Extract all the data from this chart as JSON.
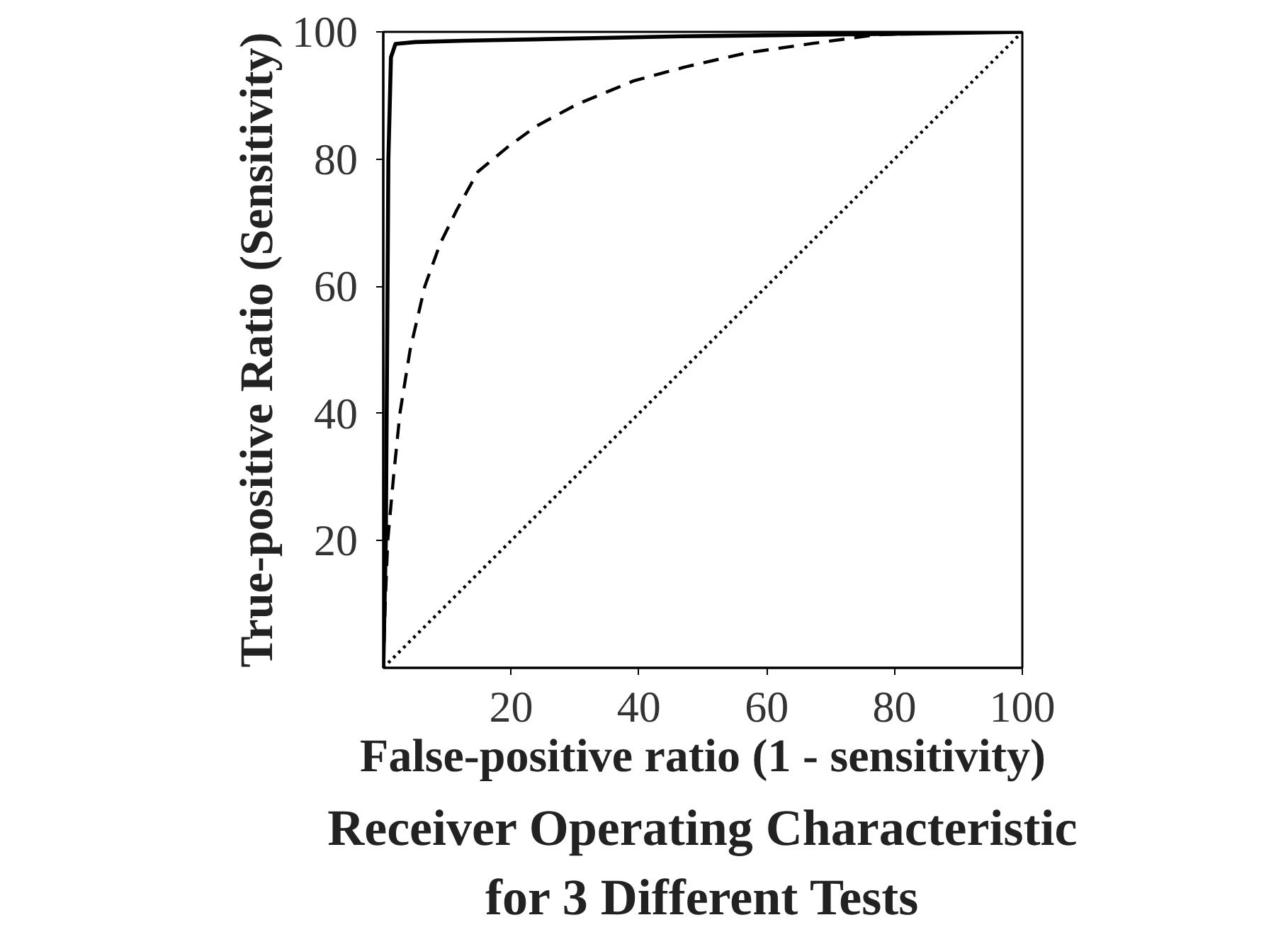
{
  "chart_data": {
    "type": "line",
    "title": "Receiver Operating Characteristic\nfor 3 Different Tests",
    "xlabel": "False-positive ratio (1 - sensitivity)",
    "ylabel": "True-positive Ratio (Sensitivity)",
    "xlim": [
      0,
      100
    ],
    "ylim": [
      0,
      100
    ],
    "xticks": [
      20,
      40,
      60,
      80,
      100
    ],
    "yticks": [
      20,
      40,
      60,
      80,
      100
    ],
    "series": [
      {
        "color": "#000000",
        "line_style": "solid",
        "x": [
          0,
          0.4,
          0.6,
          0.8,
          1.2,
          1.9,
          5,
          12.6,
          46.7,
          80,
          100
        ],
        "values": [
          0,
          20,
          50,
          80,
          96,
          98.1,
          98.4,
          98.6,
          99.3,
          99.7,
          100
        ]
      },
      {
        "color": "#000000",
        "line_style": "dashed",
        "x": [
          0,
          0.3,
          0.7,
          1.6,
          2.6,
          4.2,
          6.5,
          8.9,
          11.5,
          14.8,
          19.6,
          24,
          30.3,
          39.2,
          47.3,
          56.9,
          67.3,
          76.9,
          87,
          100
        ],
        "values": [
          0,
          10,
          20,
          30,
          40,
          50,
          60,
          66.7,
          72,
          78,
          82,
          85.2,
          88.6,
          92.3,
          94.5,
          96.7,
          98.2,
          99.5,
          100,
          100
        ]
      },
      {
        "color": "#000000",
        "line_style": "dotted",
        "x": [
          0,
          100
        ],
        "values": [
          0,
          100
        ]
      }
    ]
  }
}
